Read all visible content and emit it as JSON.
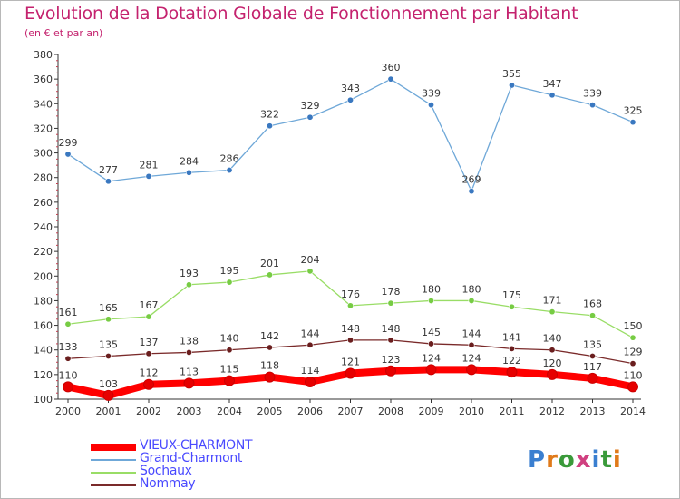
{
  "title": "Evolution de la Dotation Globale de Fonctionnement par Habitant",
  "subtitle": "(en € et par an)",
  "brand": "Proxiti",
  "chart_data": {
    "type": "line",
    "title": "Evolution de la Dotation Globale de Fonctionnement par Habitant",
    "subtitle": "(en € et par an)",
    "x": [
      "2000",
      "2001",
      "2002",
      "2003",
      "2004",
      "2005",
      "2006",
      "2007",
      "2008",
      "2009",
      "2010",
      "2011",
      "2012",
      "2013",
      "2014"
    ],
    "ylim": [
      100,
      380
    ],
    "yticks": [
      100,
      120,
      140,
      160,
      180,
      200,
      220,
      240,
      260,
      280,
      300,
      320,
      340,
      360,
      380
    ],
    "grid": false,
    "legend_position": "bottom-left",
    "series": [
      {
        "name": "VIEUX-CHARMONT",
        "color": "#ff0000",
        "marker": "#e60000",
        "labelColor": "#4a4aff",
        "values": [
          110,
          103,
          112,
          113,
          115,
          118,
          114,
          121,
          123,
          124,
          124,
          122,
          120,
          117,
          110
        ]
      },
      {
        "name": "Grand-Charmont",
        "color": "#6fa8d8",
        "marker": "#3a78c0",
        "labelColor": "#4a4aff",
        "values": [
          299,
          277,
          281,
          284,
          286,
          322,
          329,
          343,
          360,
          339,
          269,
          355,
          347,
          339,
          325
        ]
      },
      {
        "name": "Sochaux",
        "color": "#99dd66",
        "marker": "#77cc44",
        "labelColor": "#4a4aff",
        "values": [
          161,
          165,
          167,
          193,
          195,
          201,
          204,
          176,
          178,
          180,
          180,
          175,
          171,
          168,
          150
        ]
      },
      {
        "name": "Nommay",
        "color": "#7a2a2a",
        "marker": "#6a1e1e",
        "labelColor": "#4a4aff",
        "values": [
          133,
          135,
          137,
          138,
          140,
          142,
          144,
          148,
          148,
          145,
          144,
          141,
          140,
          135,
          129
        ]
      }
    ]
  }
}
